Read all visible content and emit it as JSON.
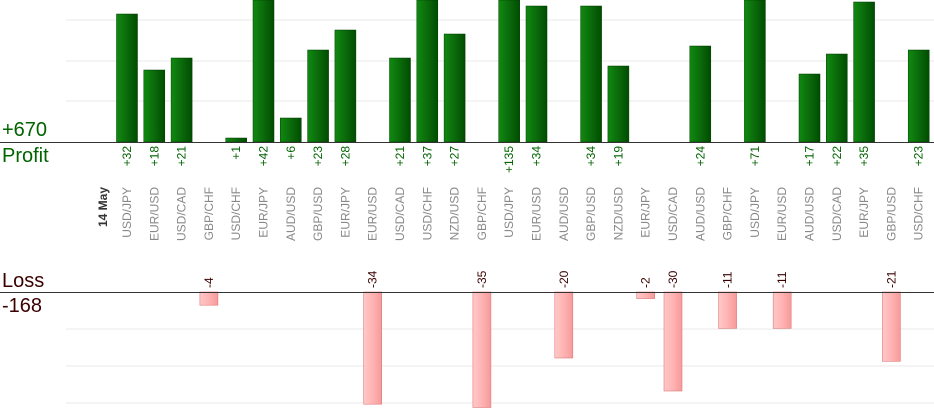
{
  "summary": {
    "profit_total": "+670",
    "profit_label": "Profit",
    "loss_label": "Loss",
    "loss_total": "-168"
  },
  "colors": {
    "profit_bar": "#0b6a0b",
    "profit_text": "#006400",
    "loss_bar": "#ffb3b3",
    "loss_text": "#3a0000",
    "pair_text": "#888888",
    "grid": "#e8e8e8"
  },
  "chart_data": {
    "type": "bar",
    "date_label": "14 May",
    "categories": [
      "USD/JPY",
      "EUR/USD",
      "USD/CAD",
      "GBP/CHF",
      "USD/CHF",
      "EUR/JPY",
      "AUD/USD",
      "GBP/USD",
      "EUR/JPY",
      "EUR/USD",
      "USD/CAD",
      "USD/CHF",
      "NZD/USD",
      "GBP/CHF",
      "USD/JPY",
      "EUR/USD",
      "AUD/USD",
      "GBP/USD",
      "NZD/USD",
      "EUR/JPY",
      "USD/CAD",
      "AUD/USD",
      "GBP/CHF",
      "USD/JPY",
      "EUR/USD",
      "AUD/USD",
      "USD/CAD",
      "EUR/JPY",
      "GBP/USD",
      "USD/CHF"
    ],
    "series": [
      {
        "name": "Profit",
        "values": [
          32,
          18,
          21,
          null,
          1,
          42,
          6,
          23,
          28,
          null,
          21,
          37,
          27,
          null,
          135,
          34,
          null,
          34,
          19,
          null,
          null,
          24,
          null,
          71,
          null,
          17,
          22,
          35,
          null,
          23
        ]
      },
      {
        "name": "Loss",
        "values": [
          null,
          null,
          null,
          -4,
          null,
          null,
          null,
          null,
          null,
          -34,
          null,
          null,
          null,
          -35,
          null,
          null,
          -20,
          null,
          null,
          -2,
          -30,
          null,
          -11,
          null,
          -11,
          null,
          null,
          null,
          -21,
          null
        ]
      }
    ],
    "profit_labels": [
      "+32",
      "+18",
      "+21",
      "",
      "+1",
      "+42",
      "+6",
      "+23",
      "+28",
      "",
      "+21",
      "+37",
      "+27",
      "",
      "+135",
      "+34",
      "",
      "+34",
      "+19",
      "",
      "",
      "+24",
      "",
      "+71",
      "",
      "+17",
      "+22",
      "+35",
      "",
      "+23"
    ],
    "loss_labels": [
      "",
      "",
      "",
      "-4",
      "",
      "",
      "",
      "",
      "",
      "-34",
      "",
      "",
      "",
      "-35",
      "",
      "",
      "-20",
      "",
      "",
      "-2",
      "-30",
      "",
      "-11",
      "",
      "-11",
      "",
      "",
      "",
      "-21",
      ""
    ],
    "profit_axis_max": 35,
    "loss_axis_min": -35,
    "grid": true
  }
}
